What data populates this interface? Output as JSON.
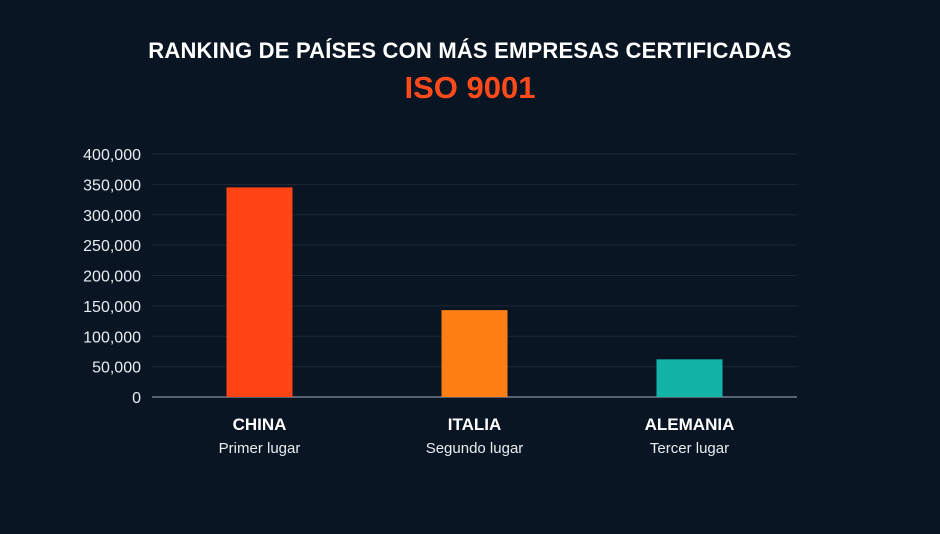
{
  "chart_data": {
    "type": "bar",
    "title": "RANKING DE PAÍSES CON MÁS EMPRESAS CERTIFICADAS",
    "subtitle": "ISO 9001",
    "categories": [
      "CHINA",
      "ITALIA",
      "ALEMANIA"
    ],
    "category_sublabels": [
      "Primer lugar",
      "Segundo lugar",
      "Tercer lugar"
    ],
    "values": [
      345000,
      143000,
      62000
    ],
    "bar_colors": [
      "#ff4516",
      "#ff7f14",
      "#12b4a8"
    ],
    "ylim": [
      0,
      400000
    ],
    "yticks": [
      0,
      50000,
      100000,
      150000,
      200000,
      250000,
      300000,
      350000,
      400000
    ],
    "ytick_labels": [
      "0",
      "50,000",
      "100,000",
      "150,000",
      "200,000",
      "250,000",
      "300,000",
      "350,000",
      "400,000"
    ],
    "grid": true,
    "xlabel": "",
    "ylabel": ""
  }
}
